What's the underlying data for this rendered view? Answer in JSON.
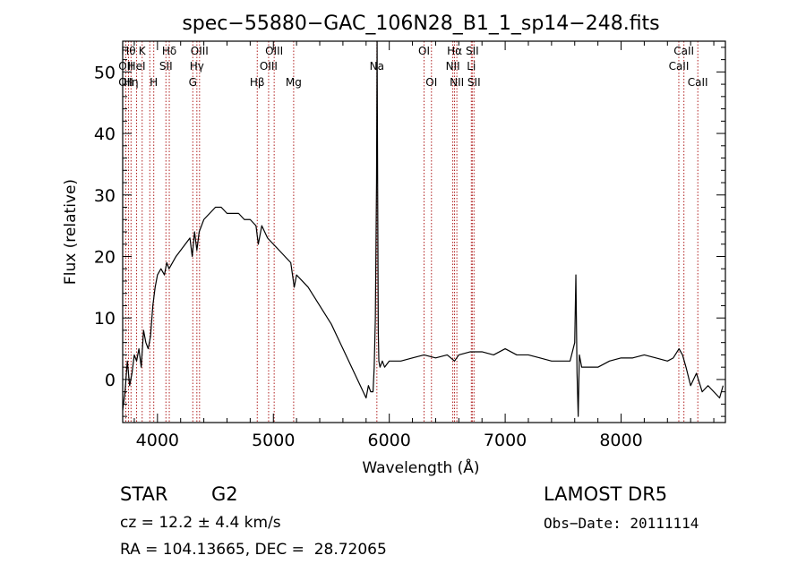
{
  "chart_data": {
    "type": "line",
    "title": "spec−55880−GAC_106N28_B1_1_sp14−248.fits",
    "xlabel": "Wavelength (Å)",
    "ylabel": "Flux (relative)",
    "xlim": [
      3700,
      8900
    ],
    "ylim": [
      -7,
      55
    ],
    "xticks": [
      4000,
      5000,
      6000,
      7000,
      8000
    ],
    "yticks": [
      0,
      10,
      20,
      30,
      40,
      50
    ],
    "x_tick_labels": [
      "4000",
      "5000",
      "6000",
      "7000",
      "8000"
    ],
    "y_tick_labels": [
      "0",
      "10",
      "20",
      "30",
      "40",
      "50"
    ],
    "grid": false,
    "series": [
      {
        "x": [
          3700,
          3720,
          3740,
          3760,
          3780,
          3800,
          3820,
          3840,
          3860,
          3880,
          3900,
          3920,
          3940,
          3960,
          3980,
          4000,
          4030,
          4060,
          4080,
          4100,
          4130,
          4160,
          4200,
          4240,
          4280,
          4300,
          4320,
          4340,
          4360,
          4400,
          4450,
          4500,
          4550,
          4600,
          4650,
          4700,
          4750,
          4800,
          4850,
          4870,
          4900,
          4950,
          5000,
          5050,
          5100,
          5150,
          5180,
          5200,
          5250,
          5300,
          5400,
          5500,
          5600,
          5700,
          5750,
          5800,
          5820,
          5840,
          5860,
          5870,
          5880,
          5890,
          5895,
          5900,
          5905,
          5910,
          5920,
          5940,
          5960,
          6000,
          6100,
          6200,
          6300,
          6400,
          6500,
          6563,
          6600,
          6700,
          6800,
          6900,
          7000,
          7100,
          7200,
          7300,
          7400,
          7500,
          7560,
          7600,
          7610,
          7620,
          7630,
          7640,
          7660,
          7700,
          7800,
          7900,
          8000,
          8100,
          8200,
          8300,
          8400,
          8450,
          8500,
          8530,
          8560,
          8600,
          8650,
          8700,
          8750,
          8800,
          8850,
          8880
        ],
        "y": [
          -5,
          -2,
          3,
          -1,
          1,
          4,
          3,
          5,
          2,
          8,
          6,
          5,
          7,
          12,
          15,
          17,
          18,
          17,
          19,
          18,
          19,
          20,
          21,
          22,
          23,
          20,
          24,
          21,
          24,
          26,
          27,
          28,
          28,
          27,
          27,
          27,
          26,
          26,
          25,
          22,
          25,
          23,
          22,
          21,
          20,
          19,
          15,
          17,
          16,
          15,
          12,
          9,
          5,
          1,
          -1,
          -3,
          -1,
          -2,
          -2,
          2,
          10,
          32,
          55,
          30,
          8,
          3,
          2,
          3,
          2,
          3,
          3,
          3.5,
          4,
          3.5,
          4,
          3,
          4,
          4.5,
          4.5,
          4,
          5,
          4,
          4,
          3.5,
          3,
          3,
          3,
          6,
          17,
          1,
          -6,
          4,
          2,
          2,
          2,
          3,
          3.5,
          3.5,
          4,
          3.5,
          3,
          3.5,
          5,
          4,
          2,
          -1,
          1,
          -2,
          -1,
          -2,
          -3,
          -1
        ]
      }
    ],
    "spectral_lines": [
      {
        "x": 3750,
        "label": "Hθ",
        "row": 1
      },
      {
        "x": 3727,
        "label": "OII",
        "row": 2
      },
      {
        "x": 3727,
        "label": "OII",
        "row": 3
      },
      {
        "x": 3772,
        "label": "Hη",
        "row": 3
      },
      {
        "x": 3820,
        "label": "HeI",
        "row": 2
      },
      {
        "x": 3868,
        "label": "K",
        "row": 1
      },
      {
        "x": 3934,
        "label": "",
        "row": 0
      },
      {
        "x": 3968,
        "label": "H",
        "row": 3
      },
      {
        "x": 4073,
        "label": "SII",
        "row": 2
      },
      {
        "x": 4102,
        "label": "Hδ",
        "row": 1
      },
      {
        "x": 4305,
        "label": "G",
        "row": 3
      },
      {
        "x": 4340,
        "label": "Hγ",
        "row": 2
      },
      {
        "x": 4363,
        "label": "OIII",
        "row": 1
      },
      {
        "x": 4861,
        "label": "Hβ",
        "row": 3
      },
      {
        "x": 4959,
        "label": "OIII",
        "row": 2
      },
      {
        "x": 5007,
        "label": "OIII",
        "row": 1
      },
      {
        "x": 5175,
        "label": "Mg",
        "row": 3
      },
      {
        "x": 5893,
        "label": "Na",
        "row": 2
      },
      {
        "x": 6300,
        "label": "OI",
        "row": 1
      },
      {
        "x": 6364,
        "label": "OI",
        "row": 3
      },
      {
        "x": 6548,
        "label": "NII",
        "row": 2
      },
      {
        "x": 6563,
        "label": "Hα",
        "row": 1
      },
      {
        "x": 6583,
        "label": "NII",
        "row": 3
      },
      {
        "x": 6708,
        "label": "Li",
        "row": 2
      },
      {
        "x": 6716,
        "label": "SII",
        "row": 1
      },
      {
        "x": 6731,
        "label": "SII",
        "row": 3
      },
      {
        "x": 8498,
        "label": "CaII",
        "row": 2
      },
      {
        "x": 8542,
        "label": "CaII",
        "row": 1
      },
      {
        "x": 8662,
        "label": "CaII",
        "row": 3
      }
    ]
  },
  "info": {
    "object_class": "STAR",
    "subclass": "G2",
    "survey": "LAMOST DR5",
    "redshift": "cz = 12.2 ± 4.4 km/s",
    "obs_date": "Obs−Date: 20111114",
    "coords": "RA = 104.13665, DEC =  28.72065"
  },
  "colors": {
    "spectrum": "#000000",
    "line_markers": "#b02020"
  }
}
